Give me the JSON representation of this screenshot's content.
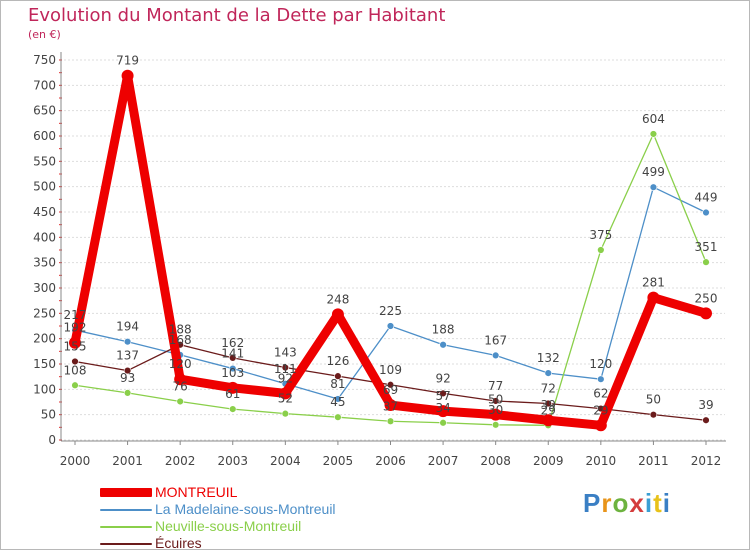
{
  "chart_data": {
    "type": "line",
    "title": "Evolution du Montant de la Dette par Habitant",
    "subtitle": "(en €)",
    "ylim": [
      0,
      750
    ],
    "yticks": [
      0,
      50,
      100,
      150,
      200,
      250,
      300,
      350,
      400,
      450,
      500,
      550,
      600,
      650,
      700,
      750
    ],
    "categories": [
      "2000",
      "2001",
      "2002",
      "2003",
      "2004",
      "2005",
      "2006",
      "2007",
      "2008",
      "2009",
      "2010",
      "2011",
      "2012"
    ],
    "series": [
      {
        "name": "La Madelaine-sous-Montreuil",
        "color": "#4d8fc8",
        "values": [
          217,
          194,
          168,
          141,
          111,
          81,
          225,
          188,
          167,
          132,
          120,
          499,
          449
        ]
      },
      {
        "name": "Neuville-sous-Montreuil",
        "color": "#8acf4a",
        "values": [
          108,
          93,
          76,
          61,
          52,
          45,
          37,
          34,
          30,
          29,
          375,
          604,
          351
        ]
      },
      {
        "name": "Écuires",
        "color": "#6b1c1c",
        "values": [
          155,
          137,
          188,
          162,
          143,
          126,
          109,
          92,
          77,
          72,
          62,
          50,
          39
        ]
      },
      {
        "name": "MONTREUIL",
        "color": "#ee0000",
        "values": [
          192,
          719,
          120,
          103,
          92,
          248,
          69,
          57,
          50,
          39,
          29,
          281,
          250
        ]
      }
    ],
    "legend": [
      "MONTREUIL",
      "La Madelaine-sous-Montreuil",
      "Neuville-sous-Montreuil",
      "Écuires"
    ],
    "legend_position": "bottom-left"
  },
  "logo": {
    "letters": [
      "P",
      "r",
      "o",
      "x",
      "i",
      "t",
      "i"
    ]
  }
}
